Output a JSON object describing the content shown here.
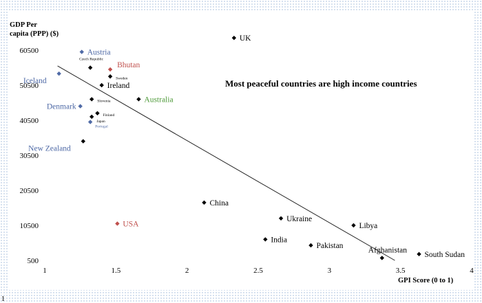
{
  "chart_data": {
    "type": "scatter",
    "title": "Most peaceful countries are high income countries",
    "ylabel_lines": [
      "GDP Per",
      "capita (PPP) ($)"
    ],
    "xlabel": "GPI Score (0 to 1)",
    "xlim": [
      1,
      4
    ],
    "ylim": [
      500,
      60500
    ],
    "x_ticks": [
      "1",
      "1.5",
      "2",
      "2.5",
      "3",
      "3.5",
      "4"
    ],
    "y_ticks": [
      "500",
      "10500",
      "20500",
      "30500",
      "40500",
      "50500",
      "60500"
    ],
    "grid": false,
    "trendline": {
      "x": [
        1.09,
        3.46
      ],
      "y": [
        56000,
        500
      ]
    },
    "points": [
      {
        "label": "UK",
        "x": 2.33,
        "y": 64000,
        "color": "#000000",
        "label_color": "#000000",
        "label_size": "large",
        "pos": "right"
      },
      {
        "label": "Austria",
        "x": 1.26,
        "y": 60000,
        "color": "#4f6aa6",
        "label_color": "#4f6aa6",
        "label_size": "large",
        "pos": "right"
      },
      {
        "label": "Czech Republic",
        "x": 1.32,
        "y": 55500,
        "color": "#000000",
        "label_color": "#000000",
        "label_size": "tiny",
        "pos": "above-left"
      },
      {
        "label": "Bhutan",
        "x": 1.46,
        "y": 55000,
        "color": "#c0504d",
        "label_color": "#c0504d",
        "label_size": "large",
        "pos": "above-right"
      },
      {
        "label": "Sweden",
        "x": 1.46,
        "y": 53000,
        "color": "#000000",
        "label_color": "#000000",
        "label_size": "tiny",
        "pos": "right"
      },
      {
        "label": "Iceland",
        "x": 1.1,
        "y": 53800,
        "color": "#4f6aa6",
        "label_color": "#4f6aa6",
        "label_size": "large",
        "pos": "below-left"
      },
      {
        "label": "Ireland",
        "x": 1.4,
        "y": 50500,
        "color": "#000000",
        "label_color": "#000000",
        "label_size": "large",
        "pos": "right"
      },
      {
        "label": "Australia",
        "x": 1.66,
        "y": 46500,
        "color": "#000000",
        "label_color": "#4f9a3a",
        "label_size": "large",
        "pos": "right"
      },
      {
        "label": "Slovenia",
        "x": 1.33,
        "y": 46500,
        "color": "#000000",
        "label_color": "#000000",
        "label_size": "tiny",
        "pos": "right"
      },
      {
        "label": "Denmark",
        "x": 1.25,
        "y": 44500,
        "color": "#4f6aa6",
        "label_color": "#4f6aa6",
        "label_size": "large",
        "pos": "left"
      },
      {
        "label": "Finland",
        "x": 1.37,
        "y": 42500,
        "color": "#000000",
        "label_color": "#000000",
        "label_size": "tiny",
        "pos": "right"
      },
      {
        "label": "Japan",
        "x": 1.33,
        "y": 41500,
        "color": "#000000",
        "label_color": "#000000",
        "label_size": "tiny",
        "pos": "right-below"
      },
      {
        "label": "Portugal",
        "x": 1.32,
        "y": 40000,
        "color": "#4f6aa6",
        "label_color": "#4f6aa6",
        "label_size": "tiny",
        "pos": "right-below"
      },
      {
        "label": "New Zealand",
        "x": 1.27,
        "y": 34500,
        "color": "#000000",
        "label_color": "#4f6aa6",
        "label_size": "large",
        "pos": "below-left"
      },
      {
        "label": "China",
        "x": 2.12,
        "y": 17000,
        "color": "#000000",
        "label_color": "#000000",
        "label_size": "large",
        "pos": "right"
      },
      {
        "label": "Ukraine",
        "x": 2.66,
        "y": 12500,
        "color": "#000000",
        "label_color": "#000000",
        "label_size": "large",
        "pos": "right"
      },
      {
        "label": "Libya",
        "x": 3.17,
        "y": 10500,
        "color": "#000000",
        "label_color": "#000000",
        "label_size": "large",
        "pos": "right"
      },
      {
        "label": "USA",
        "x": 1.51,
        "y": 11000,
        "color": "#c0504d",
        "label_color": "#c0504d",
        "label_size": "large",
        "pos": "right"
      },
      {
        "label": "India",
        "x": 2.55,
        "y": 6500,
        "color": "#000000",
        "label_color": "#000000",
        "label_size": "large",
        "pos": "right"
      },
      {
        "label": "Pakistan",
        "x": 2.87,
        "y": 4800,
        "color": "#000000",
        "label_color": "#000000",
        "label_size": "large",
        "pos": "right"
      },
      {
        "label": "Afghanistan",
        "x": 3.37,
        "y": 1200,
        "color": "#000000",
        "label_color": "#000000",
        "label_size": "large",
        "pos": "above"
      },
      {
        "label": "South Sudan",
        "x": 3.63,
        "y": 2300,
        "color": "#000000",
        "label_color": "#000000",
        "label_size": "large",
        "pos": "right"
      }
    ]
  },
  "footer_stray": "1"
}
